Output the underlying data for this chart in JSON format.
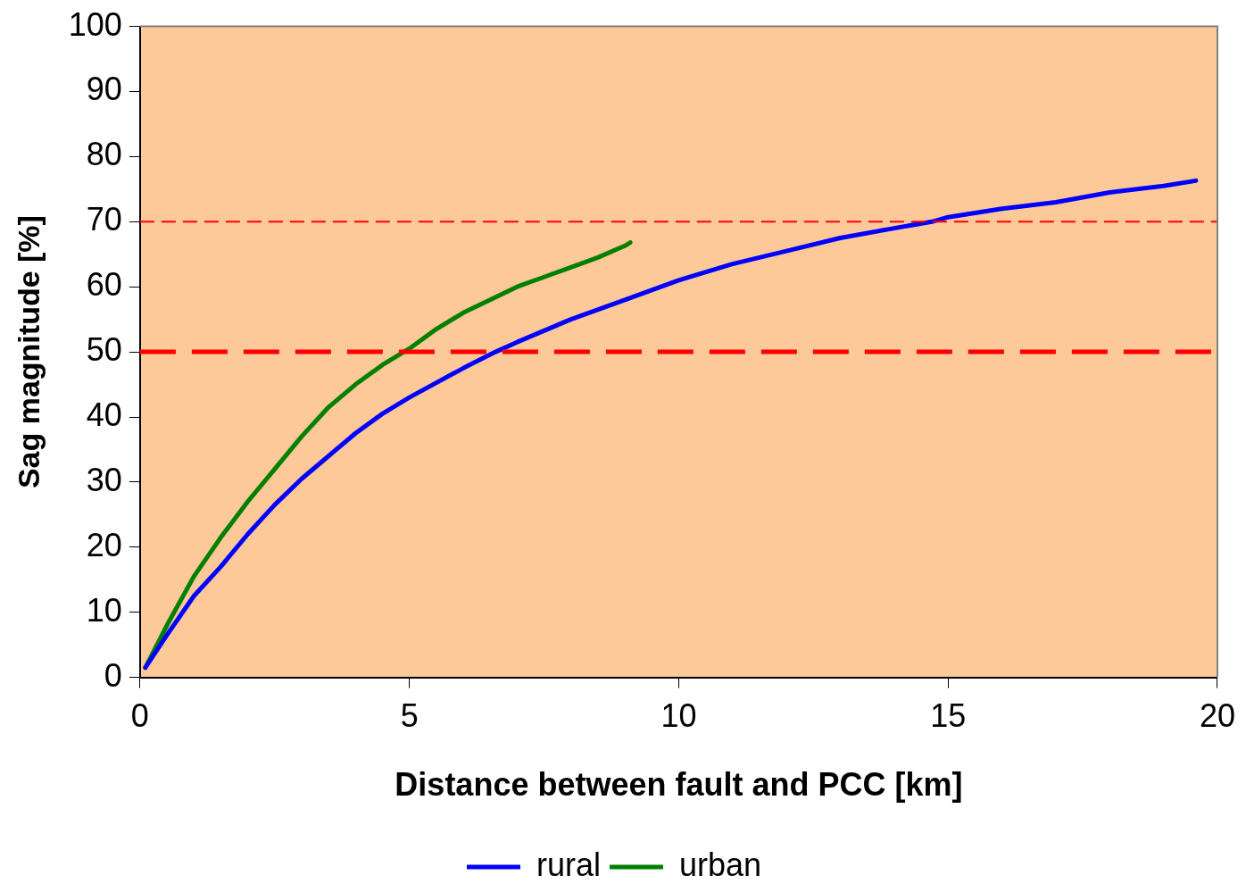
{
  "chart_data": {
    "type": "line",
    "xlabel": "Distance between fault and PCC [km]",
    "ylabel": "Sag magnitude [%]",
    "xlim": [
      0,
      20
    ],
    "xticks": [
      0,
      5,
      10,
      15,
      20
    ],
    "ylim": [
      0,
      100
    ],
    "yticks": [
      0,
      10,
      20,
      30,
      40,
      50,
      60,
      70,
      80,
      90,
      100
    ],
    "grid": false,
    "legend": "bottom",
    "marker": "none",
    "line_style": "solid",
    "series": [
      {
        "name": "rural",
        "color": "#0000ff",
        "x": [
          0.1,
          0.5,
          1,
          1.5,
          2,
          2.5,
          3,
          3.5,
          4,
          4.5,
          5,
          6,
          6.6,
          7,
          8,
          9,
          10,
          11,
          12,
          13,
          14,
          14.7,
          15,
          16,
          17,
          18,
          19,
          19.6
        ],
        "values": [
          1.5,
          6.5,
          12.5,
          17,
          22,
          26.5,
          30.5,
          34,
          37.5,
          40.5,
          43,
          47.5,
          50,
          51.5,
          55,
          58,
          61,
          63.5,
          65.5,
          67.5,
          69,
          70,
          70.7,
          72,
          73,
          74.5,
          75.5,
          76.3
        ]
      },
      {
        "name": "urban",
        "color": "#008000",
        "x": [
          0.1,
          0.5,
          1,
          1.5,
          2,
          2.5,
          3,
          3.5,
          4,
          4.5,
          5,
          5.5,
          6,
          6.5,
          7,
          7.5,
          8,
          8.5,
          9,
          9.1
        ],
        "values": [
          1.5,
          8,
          15.5,
          21.5,
          27,
          32,
          37,
          41.5,
          45,
          48,
          50.5,
          53.5,
          56,
          58,
          60,
          61.5,
          63,
          64.5,
          66.3,
          66.8
        ]
      }
    ],
    "ref_lines": [
      {
        "axis": "y",
        "value": 70,
        "color": "#ff0000",
        "line_style": "dashed"
      },
      {
        "axis": "y",
        "value": 50,
        "color": "#ff0000",
        "line_style": "dashed"
      }
    ]
  }
}
